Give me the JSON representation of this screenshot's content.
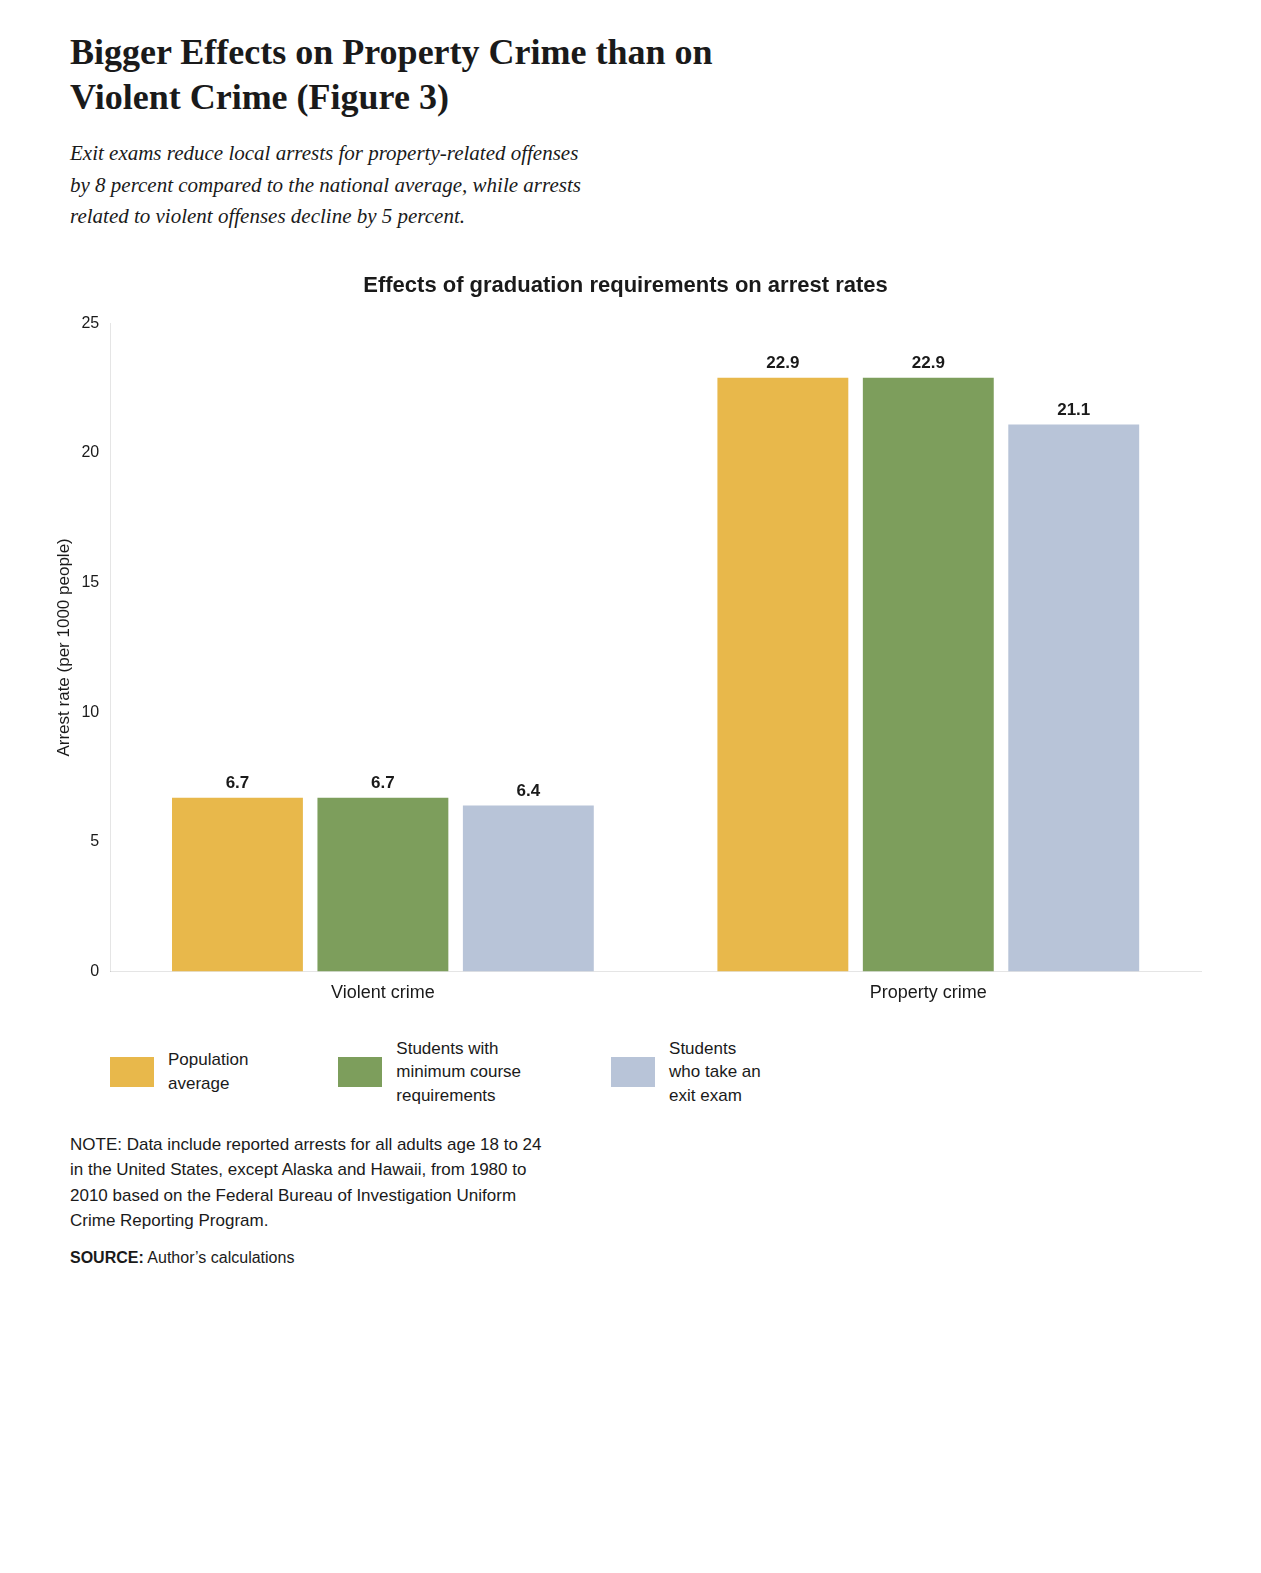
{
  "chart_data": {
    "type": "bar",
    "suptitle": [
      "Bigger Effects on Property Crime than on",
      "Violent Crime (Figure 3)"
    ],
    "subtitle": "Exit exams reduce local arrests for property-related offenses\nby 8 percent compared to the national average, while arrests\nrelated to violent offenses decline by 5 percent.",
    "title": "Effects of graduation requirements on arrest rates",
    "ylabel": "Arrest rate (per 1000 people)",
    "categories": [
      "Violent crime",
      "Property crime"
    ],
    "series": [
      {
        "name": "Population\naverage",
        "color": "#E8B84B",
        "values": [
          6.7,
          22.9
        ]
      },
      {
        "name": "Students with\nminimum course\nrequirements",
        "color": "#7D9E5C",
        "values": [
          6.7,
          22.9
        ]
      },
      {
        "name": "Students\nwho take an\nexit exam",
        "color": "#B8C4D8",
        "values": [
          6.4,
          21.1
        ]
      }
    ],
    "ylim": [
      0,
      25
    ],
    "yticks": [
      0,
      5,
      10,
      15,
      20,
      25
    ],
    "grid": false,
    "legend": "bottom",
    "data_labels": true,
    "note": "NOTE: Data include reported arrests for all adults age 18 to 24\nin the United States, except Alaska and Hawaii, from 1980 to\n2010 based on the Federal Bureau of Investigation Uniform\nCrime Reporting Program.",
    "source_label": "SOURCE:",
    "source": "Author’s calculations"
  }
}
